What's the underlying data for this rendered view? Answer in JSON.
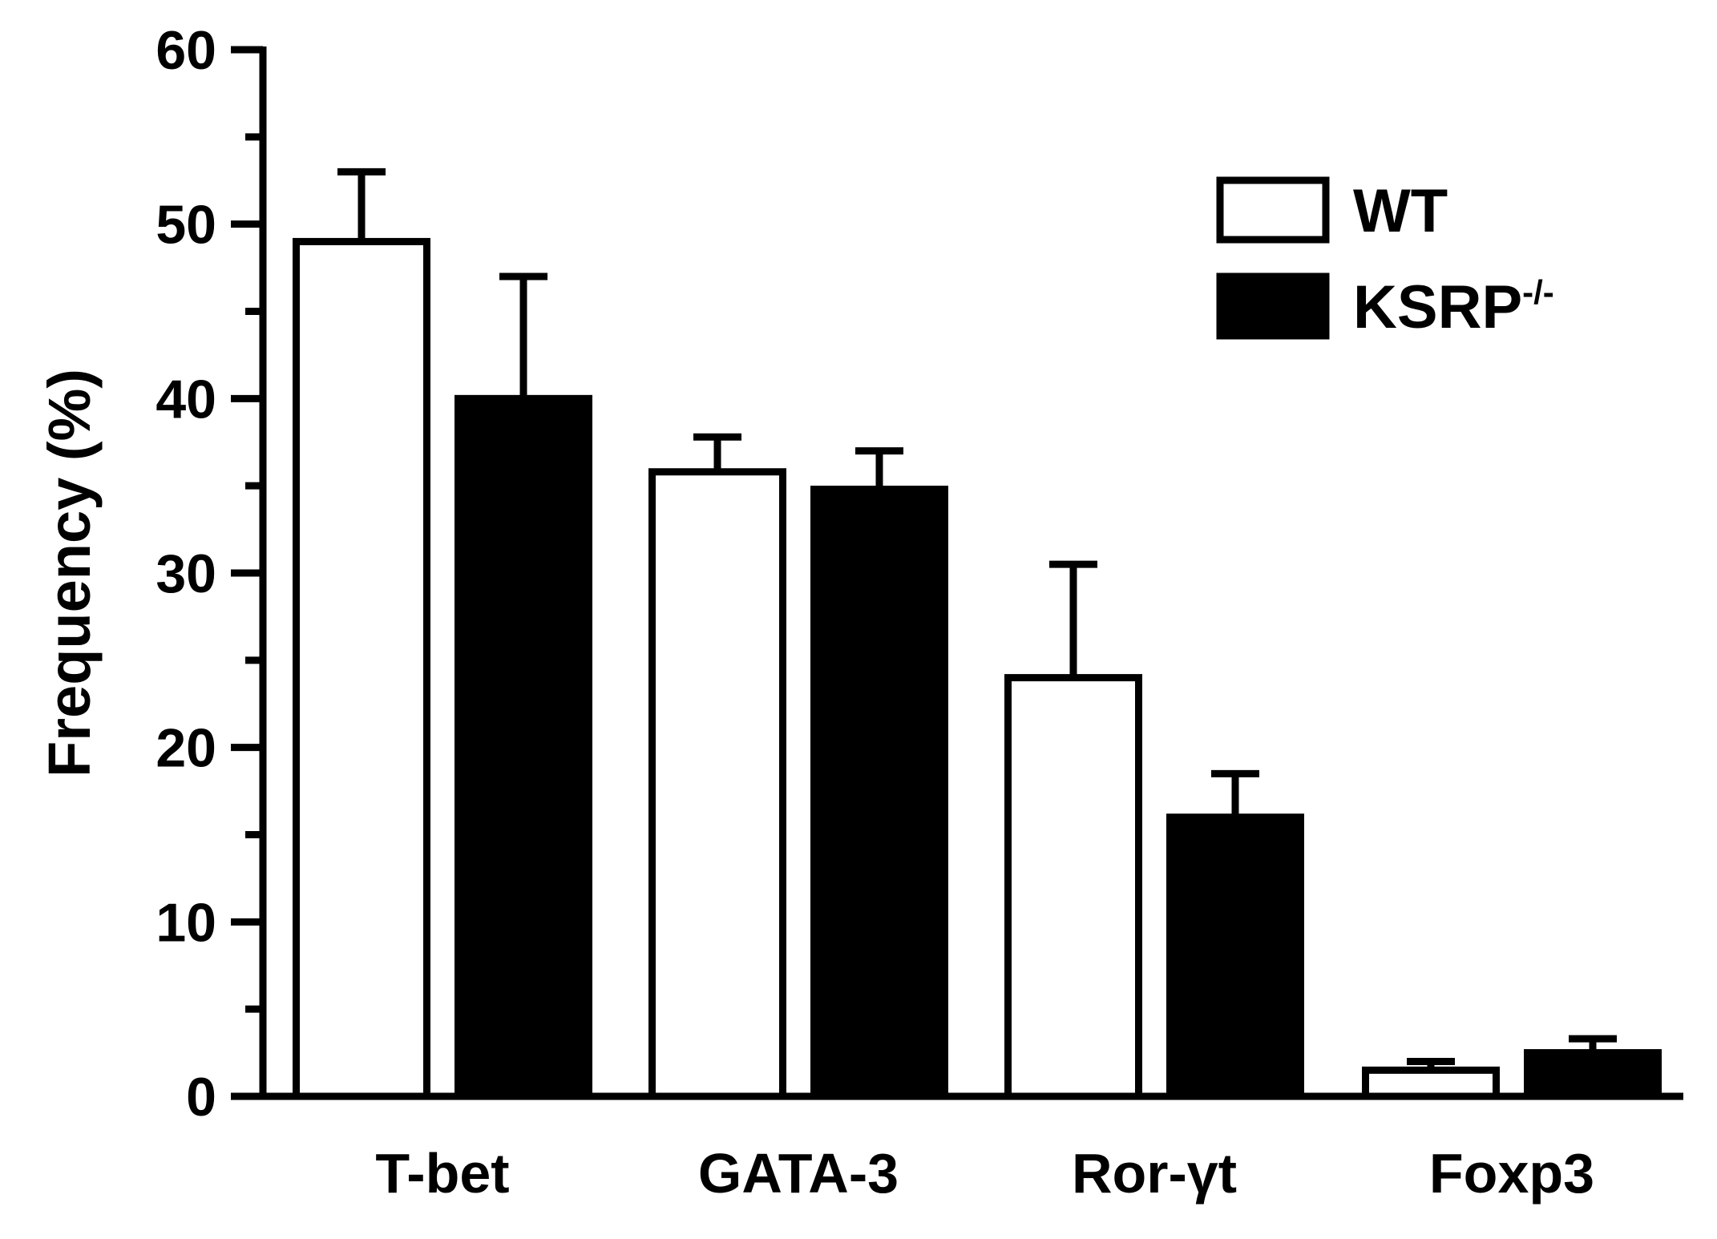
{
  "chart_data": {
    "type": "bar",
    "title": "",
    "xlabel": "",
    "ylabel": "Frequency (%)",
    "ylim": [
      0,
      60
    ],
    "yticks": [
      0,
      10,
      20,
      30,
      40,
      50,
      60
    ],
    "yticks_minor_step": 5,
    "grid": false,
    "legend_position": "top-right",
    "categories": [
      "T-bet",
      "GATA-3",
      "Ror-γt",
      "Foxp3"
    ],
    "series": [
      {
        "name": "WT",
        "fill": "#ffffff",
        "stroke": "#000000",
        "values": [
          49,
          35.8,
          24,
          1.5
        ],
        "errors": [
          4,
          2,
          6.5,
          0.5
        ]
      },
      {
        "name": "KSRP",
        "name_superscript": "-/-",
        "fill": "#000000",
        "stroke": "#000000",
        "values": [
          40,
          34.8,
          16,
          2.5
        ],
        "errors": [
          7,
          2.2,
          2.5,
          0.8
        ]
      }
    ]
  }
}
